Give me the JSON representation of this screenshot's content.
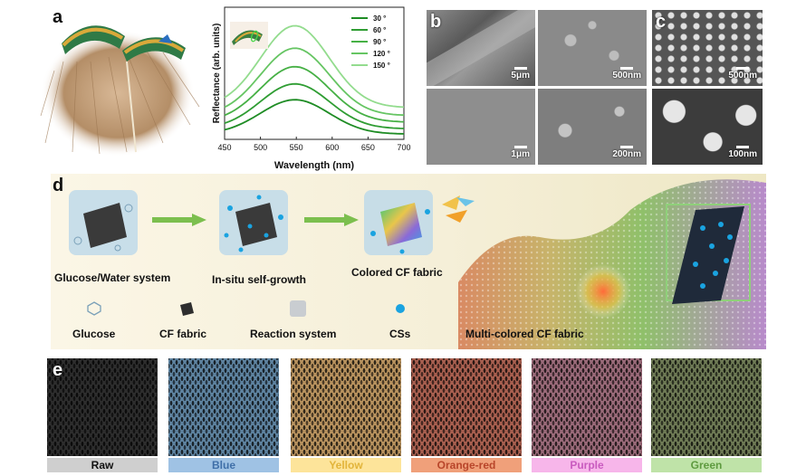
{
  "panel_labels": {
    "a": "a",
    "b": "b",
    "c": "c",
    "d": "d",
    "e": "e"
  },
  "chart_data": {
    "type": "line",
    "xlabel": "Wavelength (nm)",
    "ylabel": "Reflectance (arb. units)",
    "xlim": [
      450,
      700
    ],
    "x_ticks": [
      "450",
      "500",
      "550",
      "600",
      "650",
      "700"
    ],
    "legend_position": "top-right",
    "series": [
      {
        "name": "30 °",
        "color": "#1e8c24",
        "peak_x": 548,
        "peak_y": 0.3,
        "base_y": 0.04
      },
      {
        "name": "60 °",
        "color": "#2f9d33",
        "peak_x": 548,
        "peak_y": 0.42,
        "base_y": 0.08
      },
      {
        "name": "90 °",
        "color": "#46b045",
        "peak_x": 548,
        "peak_y": 0.55,
        "base_y": 0.13
      },
      {
        "name": "120 °",
        "color": "#66c563",
        "peak_x": 548,
        "peak_y": 0.69,
        "base_y": 0.18
      },
      {
        "name": "150 °",
        "color": "#93dc8e",
        "peak_x": 548,
        "peak_y": 0.86,
        "base_y": 0.24
      }
    ]
  },
  "sem_scalebars": {
    "b1": "5μm",
    "b2": "500nm",
    "b3": "1μm",
    "b4": "200nm",
    "c1": "500nm",
    "c2": "100nm"
  },
  "process": {
    "step1": "Glucose/Water system",
    "step2": "In-situ self-growth",
    "step3": "Colored CF fabric",
    "legend_glucose": "Glucose",
    "legend_cf": "CF fabric",
    "legend_reaction": "Reaction system",
    "legend_cs": "CSs",
    "multi": "Multi-colored CF fabric"
  },
  "fabrics": [
    {
      "label": "Raw",
      "bg": "#2d2d2d",
      "label_bg": "#cfcfcf",
      "label_color": "#111111"
    },
    {
      "label": "Blue",
      "bg": "#5e83a0",
      "label_bg": "#9fc2e4",
      "label_color": "#3f6fa8"
    },
    {
      "label": "Yellow",
      "bg": "#b8925e",
      "label_bg": "#fde49a",
      "label_color": "#e2b43a"
    },
    {
      "label": "Orange-red",
      "bg": "#a85f4f",
      "label_bg": "#f0a07a",
      "label_color": "#b8452a"
    },
    {
      "label": "Purple",
      "bg": "#9a6a79",
      "label_bg": "#f7b6ea",
      "label_color": "#c95bbf"
    },
    {
      "label": "Green",
      "bg": "#6e7a55",
      "label_bg": "#bfe3a8",
      "label_color": "#5e9a3f"
    }
  ]
}
